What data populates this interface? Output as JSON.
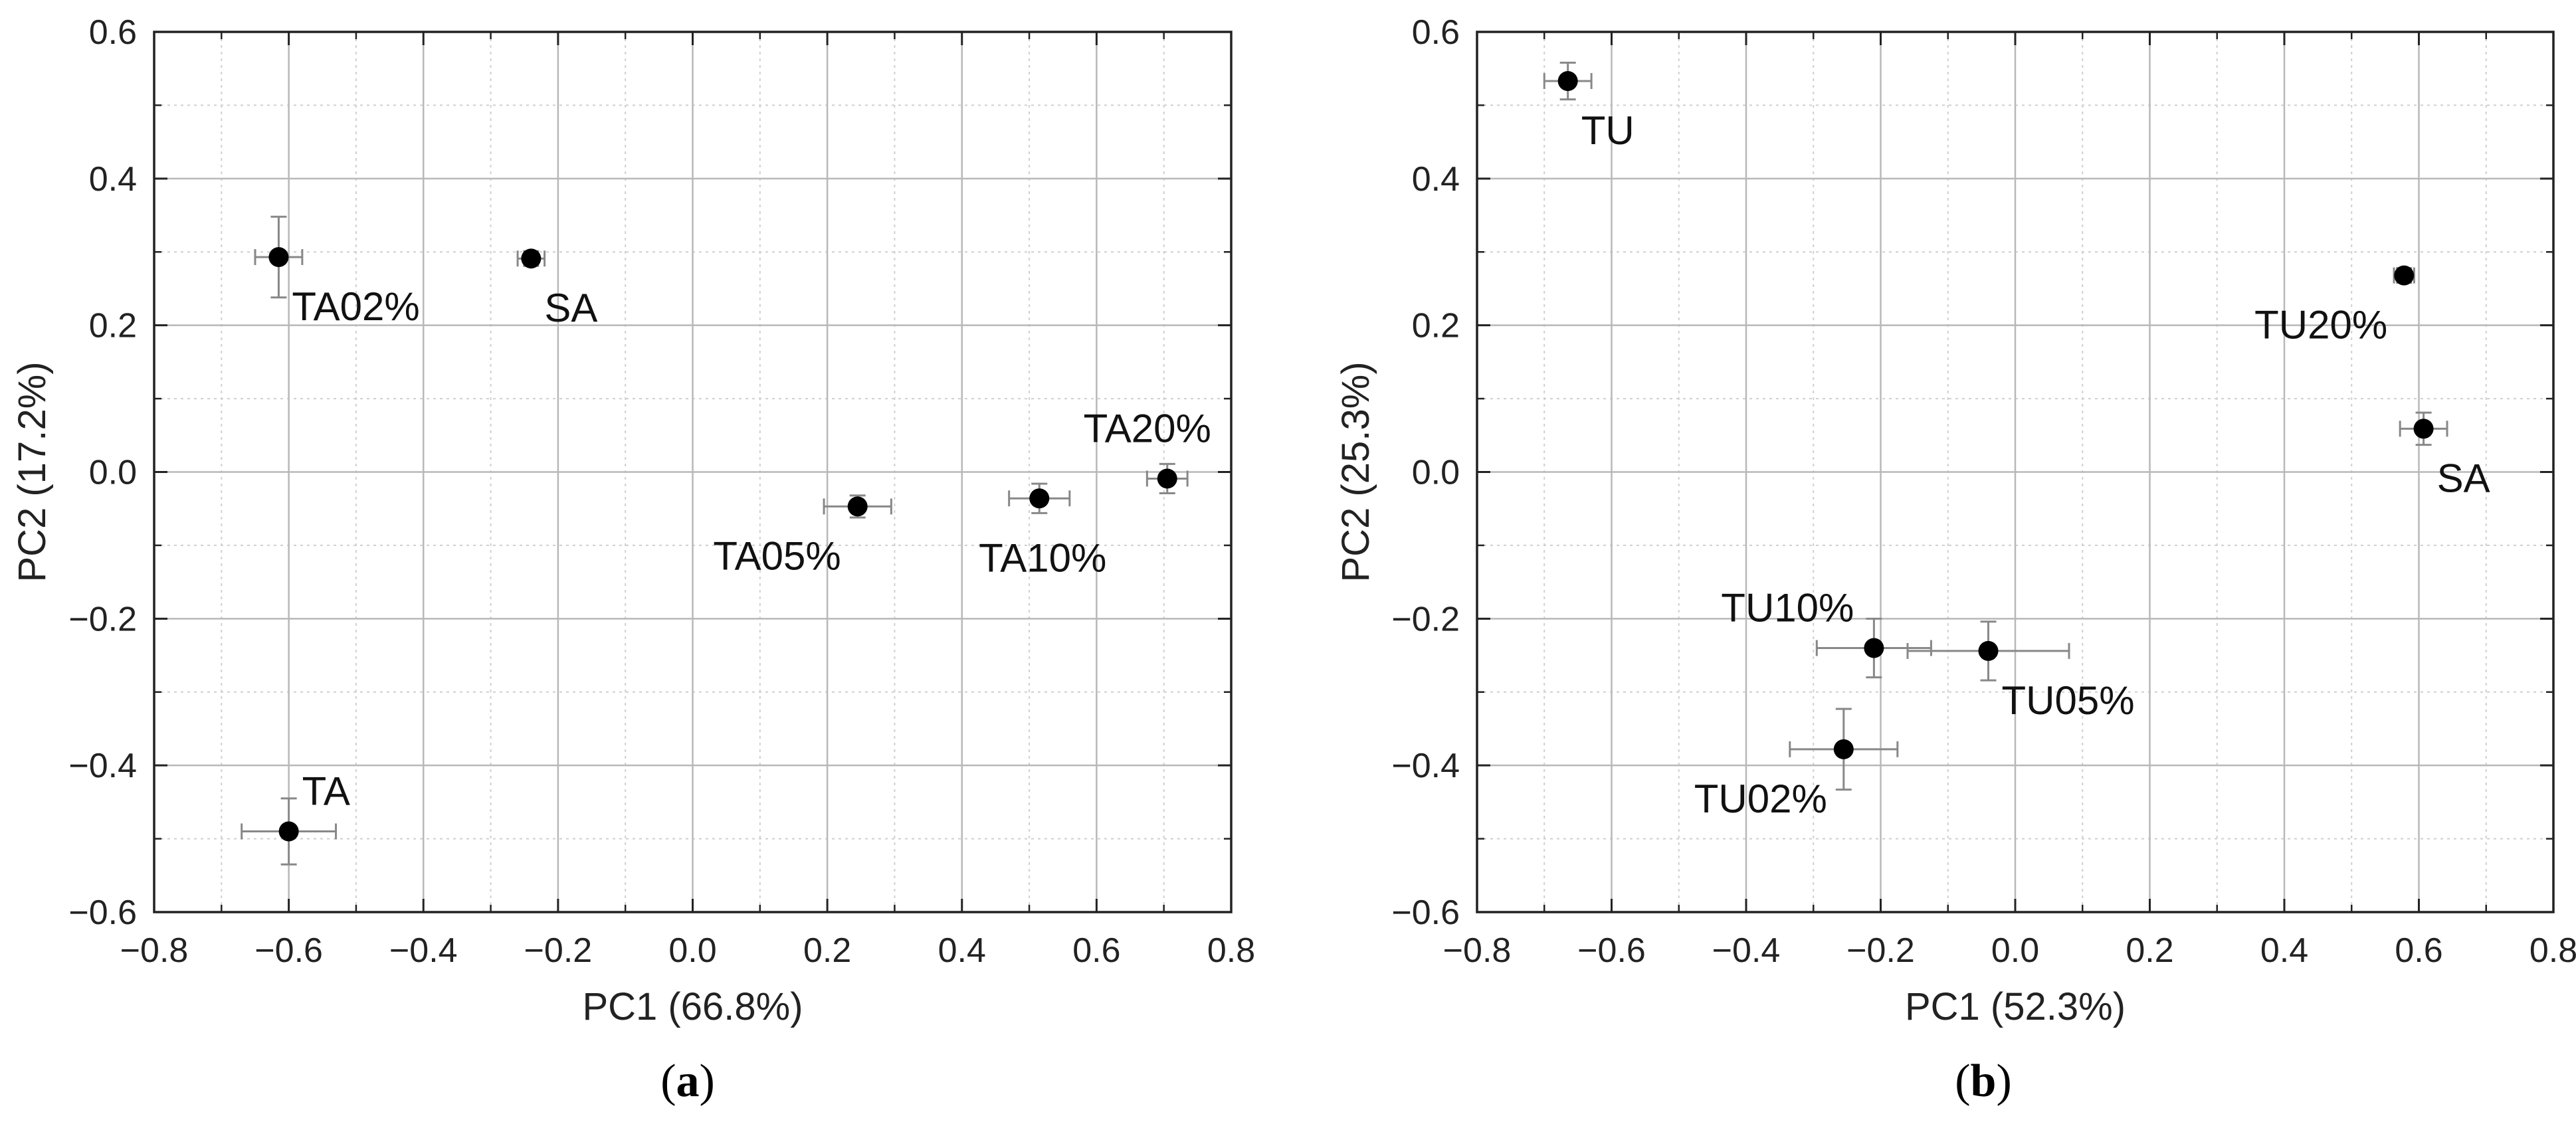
{
  "chart_data": [
    {
      "type": "scatter",
      "panel": "a",
      "xlabel": "PC1 (66.8%)",
      "ylabel": "PC2 (17.2%)",
      "xlim": [
        -0.8,
        0.8
      ],
      "ylim": [
        -0.6,
        0.6
      ],
      "xticks": [
        -0.8,
        -0.6,
        -0.4,
        -0.2,
        0.0,
        0.2,
        0.4,
        0.6,
        0.8
      ],
      "yticks": [
        -0.6,
        -0.4,
        -0.2,
        0.0,
        0.2,
        0.4,
        0.6
      ],
      "xtick_labels": [
        "−0.8",
        "−0.6",
        "−0.4",
        "−0.2",
        "0.0",
        "0.2",
        "0.4",
        "0.6",
        "0.8"
      ],
      "ytick_labels": [
        "−0.6",
        "−0.4",
        "−0.2",
        "0.0",
        "0.2",
        "0.4",
        "0.6"
      ],
      "grid": true,
      "points": [
        {
          "label": "TA02%",
          "x": -0.615,
          "y": 0.293,
          "xerr": 0.035,
          "yerr": 0.055,
          "label_pos": "below-right"
        },
        {
          "label": "SA",
          "x": -0.24,
          "y": 0.291,
          "xerr": 0.02,
          "yerr": 0.01,
          "label_pos": "below-right"
        },
        {
          "label": "TA05%",
          "x": 0.245,
          "y": -0.047,
          "xerr": 0.05,
          "yerr": 0.015,
          "label_pos": "below-left"
        },
        {
          "label": "TA10%",
          "x": 0.515,
          "y": -0.036,
          "xerr": 0.045,
          "yerr": 0.02,
          "label_pos": "below"
        },
        {
          "label": "TA20%",
          "x": 0.705,
          "y": -0.009,
          "xerr": 0.03,
          "yerr": 0.02,
          "label_pos": "above"
        },
        {
          "label": "TA",
          "x": -0.6,
          "y": -0.49,
          "xerr": 0.07,
          "yerr": 0.045,
          "label_pos": "above-right"
        }
      ]
    },
    {
      "type": "scatter",
      "panel": "b",
      "xlabel": "PC1 (52.3%)",
      "ylabel": "PC2 (25.3%)",
      "xlim": [
        -0.8,
        0.8
      ],
      "ylim": [
        -0.6,
        0.6
      ],
      "xticks": [
        -0.8,
        -0.6,
        -0.4,
        -0.2,
        0.0,
        0.2,
        0.4,
        0.6,
        0.8
      ],
      "yticks": [
        -0.6,
        -0.4,
        -0.2,
        0.0,
        0.2,
        0.4,
        0.6
      ],
      "xtick_labels": [
        "−0.8",
        "−0.6",
        "−0.4",
        "−0.2",
        "0.0",
        "0.2",
        "0.4",
        "0.6",
        "0.8"
      ],
      "ytick_labels": [
        "−0.6",
        "−0.4",
        "−0.2",
        "0.0",
        "0.2",
        "0.4",
        "0.6"
      ],
      "grid": true,
      "points": [
        {
          "label": "TU",
          "x": -0.665,
          "y": 0.533,
          "xerr": 0.035,
          "yerr": 0.025,
          "label_pos": "below-right"
        },
        {
          "label": "TU20%",
          "x": 0.578,
          "y": 0.268,
          "xerr": 0.015,
          "yerr": 0.01,
          "label_pos": "below-left"
        },
        {
          "label": "SA",
          "x": 0.607,
          "y": 0.059,
          "xerr": 0.035,
          "yerr": 0.022,
          "label_pos": "below-right"
        },
        {
          "label": "TU10%",
          "x": -0.21,
          "y": -0.24,
          "xerr": 0.085,
          "yerr": 0.04,
          "label_pos": "above-left"
        },
        {
          "label": "TU05%",
          "x": -0.04,
          "y": -0.244,
          "xerr": 0.12,
          "yerr": 0.04,
          "label_pos": "below-right"
        },
        {
          "label": "TU02%",
          "x": -0.255,
          "y": -0.378,
          "xerr": 0.08,
          "yerr": 0.055,
          "label_pos": "below-left"
        }
      ]
    }
  ],
  "panel_labels": [
    {
      "pre": "(",
      "letter": "a",
      "post": ")"
    },
    {
      "pre": "(",
      "letter": "b",
      "post": ")"
    }
  ]
}
